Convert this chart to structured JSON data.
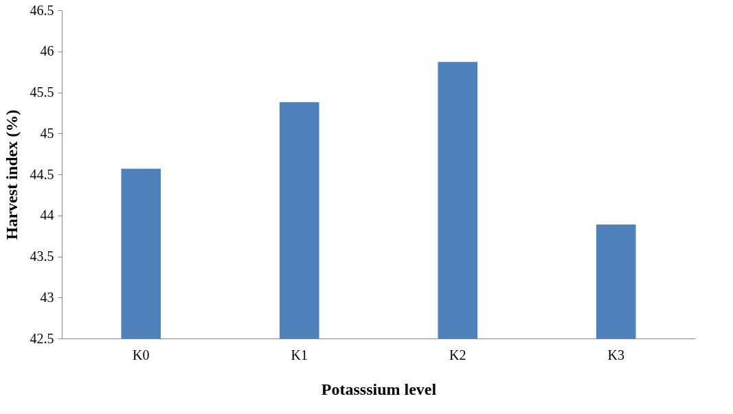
{
  "chart_data": {
    "type": "bar",
    "xlabel": "Potasssium level",
    "ylabel": "Harvest index (%)",
    "categories": [
      "K0",
      "K1",
      "K2",
      "K3"
    ],
    "values": [
      44.57,
      45.38,
      45.87,
      43.89
    ],
    "color": "#4f81bd",
    "ylim": [
      42.5,
      46.5
    ],
    "yticks": [
      42.5,
      43,
      43.5,
      44,
      44.5,
      45,
      45.5,
      46,
      46.5
    ],
    "grid": false
  }
}
